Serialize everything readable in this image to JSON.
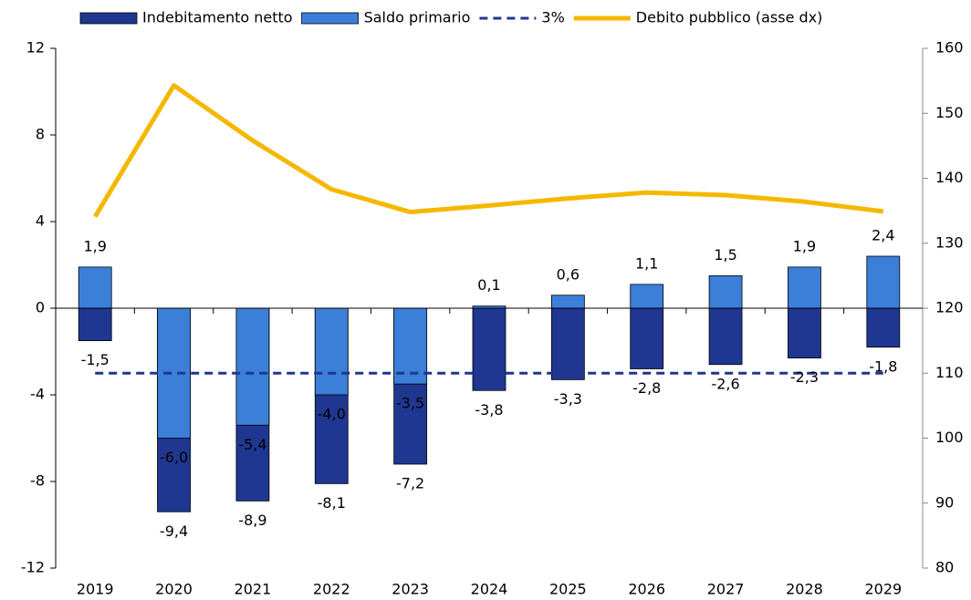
{
  "chart_data": {
    "type": "bar",
    "categories": [
      "2019",
      "2020",
      "2021",
      "2022",
      "2023",
      "2024",
      "2025",
      "2026",
      "2027",
      "2028",
      "2029"
    ],
    "series": [
      {
        "name": "Indebitamento netto",
        "type": "bar",
        "color": "#1f3790",
        "values": [
          -1.5,
          -9.4,
          -8.9,
          -8.1,
          -7.2,
          -3.8,
          -3.3,
          -2.8,
          -2.6,
          -2.3,
          -1.8
        ],
        "value_labels": [
          "-1,5",
          "-9,4",
          "-8,9",
          "-8,1",
          "-7,2",
          "-3,8",
          "-3,3",
          "-2,8",
          "-2,6",
          "-2,3",
          "-1,8"
        ]
      },
      {
        "name": "Saldo primario",
        "type": "bar",
        "color": "#3b7fd9",
        "values": [
          1.9,
          -6.0,
          -5.4,
          -4.0,
          -3.5,
          0.1,
          0.6,
          1.1,
          1.5,
          1.9,
          2.4
        ],
        "value_labels": [
          "1,9",
          "-6,0",
          "-5,4",
          "-4,0",
          "-3,5",
          "0,1",
          "0,6",
          "1,1",
          "1,5",
          "1,9",
          "2,4"
        ]
      },
      {
        "name": "3%",
        "type": "line",
        "dashed": true,
        "color": "#1f3790",
        "values": [
          -3,
          -3,
          -3,
          -3,
          -3,
          -3,
          -3,
          -3,
          -3,
          -3,
          -3
        ]
      },
      {
        "name": "Debito pubblico (asse dx)",
        "type": "line",
        "axis": "y2",
        "color": "#f5b800",
        "values": [
          134.1,
          154.3,
          145.8,
          138.3,
          134.8,
          135.8,
          136.9,
          137.8,
          137.4,
          136.4,
          134.9
        ]
      }
    ],
    "ylim": [
      -12,
      12
    ],
    "yticks": [
      -12,
      -8,
      -4,
      0,
      4,
      8,
      12
    ],
    "y2lim": [
      80,
      160
    ],
    "y2ticks": [
      80,
      90,
      100,
      110,
      120,
      130,
      140,
      150,
      160
    ],
    "legend": "top"
  }
}
